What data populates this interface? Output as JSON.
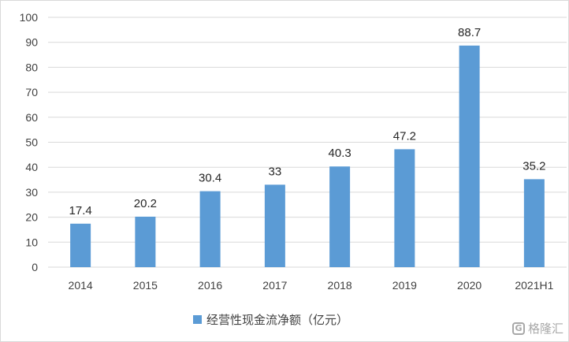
{
  "chart_data": {
    "type": "bar",
    "categories": [
      "2014",
      "2015",
      "2016",
      "2017",
      "2018",
      "2019",
      "2020",
      "2021H1"
    ],
    "series": [
      {
        "name": "经营性现金流净额（亿元）",
        "values": [
          17.4,
          20.2,
          30.4,
          33,
          40.3,
          47.2,
          88.7,
          35.2
        ]
      }
    ],
    "data_labels": [
      "17.4",
      "20.2",
      "30.4",
      "33",
      "40.3",
      "47.2",
      "88.7",
      "35.2"
    ],
    "ylim": [
      0,
      100
    ],
    "yticks": [
      0,
      10,
      20,
      30,
      40,
      50,
      60,
      70,
      80,
      90,
      100
    ],
    "grid": true,
    "legend_position": "bottom",
    "bar_color": "#5b9bd5",
    "grid_color": "#d9d9d9",
    "title": "",
    "xlabel": "",
    "ylabel": ""
  },
  "legend": {
    "label": "经营性现金流净额（亿元）"
  },
  "watermark": {
    "logo_glyph": "G",
    "text": "格隆汇"
  }
}
